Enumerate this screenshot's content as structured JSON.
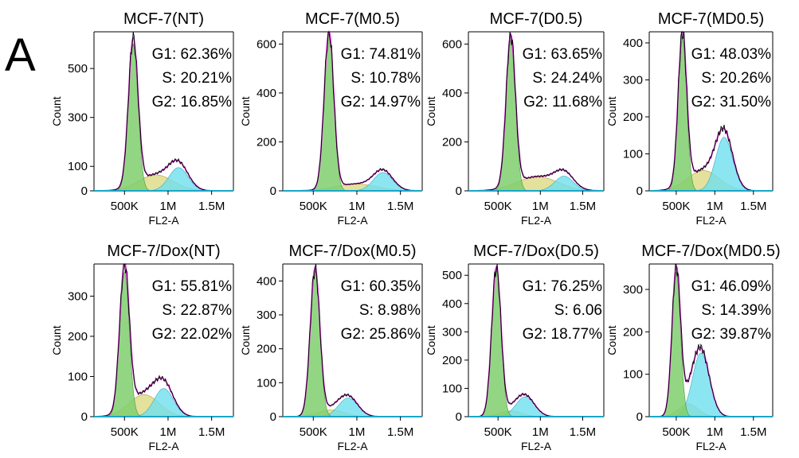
{
  "figure": {
    "panel_letter": "A"
  },
  "colors": {
    "g1_fill": "#7fcf6f",
    "s_fill": "#d9d77a",
    "g2_fill": "#6fe0ef",
    "fit_curve": "#e020e0",
    "data_curve": "#000000",
    "axis_line": "#1aa6c8"
  },
  "chart_data": [
    {
      "type": "histogram",
      "title": "MCF-7(NT)",
      "xlabel": "FL2-A",
      "ylabel": "Count",
      "xticks": [
        "500K",
        "1M",
        "1.5M"
      ],
      "yticks": [
        0,
        100,
        300,
        500
      ],
      "ymax": 650,
      "annotations": [
        "G1: 62.36%",
        "S: 20.21%",
        "G2: 16.85%"
      ],
      "g1_peak": {
        "x": 0.6,
        "height": 600
      },
      "s_phase": {
        "height": 65
      },
      "g2_peak": {
        "x": 1.12,
        "height": 95
      }
    },
    {
      "type": "histogram",
      "title": "MCF-7(M0.5)",
      "xlabel": "FL2-A",
      "ylabel": "Count",
      "xticks": [
        "500K",
        "1M",
        "1.5M"
      ],
      "yticks": [
        0,
        200,
        400,
        600
      ],
      "ymax": 650,
      "annotations": [
        "G1: 74.81%",
        "S: 10.78%",
        "G2: 14.97%"
      ],
      "g1_peak": {
        "x": 0.68,
        "height": 640
      },
      "s_phase": {
        "height": 28
      },
      "g2_peak": {
        "x": 1.3,
        "height": 75
      }
    },
    {
      "type": "histogram",
      "title": "MCF-7(D0.5)",
      "xlabel": "FL2-A",
      "ylabel": "Count",
      "xticks": [
        "500K",
        "1M",
        "1.5M"
      ],
      "yticks": [
        0,
        200,
        400,
        600
      ],
      "ymax": 650,
      "annotations": [
        "G1: 63.65%",
        "S: 24.24%",
        "G2: 11.68%"
      ],
      "g1_peak": {
        "x": 0.65,
        "height": 615
      },
      "s_phase": {
        "height": 58
      },
      "g2_peak": {
        "x": 1.28,
        "height": 60
      }
    },
    {
      "type": "histogram",
      "title": "MCF-7(MD0.5)",
      "xlabel": "FL2-A",
      "ylabel": "Count",
      "xticks": [
        "500K",
        "1M",
        "1.5M"
      ],
      "yticks": [
        0,
        100,
        200,
        300,
        400
      ],
      "ymax": 430,
      "annotations": [
        "G1: 48.03%",
        "S: 20.26%",
        "G2: 31.50%"
      ],
      "g1_peak": {
        "x": 0.58,
        "height": 410
      },
      "s_phase": {
        "height": 55
      },
      "g2_peak": {
        "x": 1.12,
        "height": 145
      }
    },
    {
      "type": "histogram",
      "title": "MCF-7/Dox(NT)",
      "xlabel": "FL2-A",
      "ylabel": "Count",
      "xticks": [
        "500K",
        "1M",
        "1.5M"
      ],
      "yticks": [
        0,
        100,
        200,
        300
      ],
      "ymax": 380,
      "annotations": [
        "G1: 55.81%",
        "S: 22.87%",
        "G2: 22.02%"
      ],
      "g1_peak": {
        "x": 0.5,
        "height": 360
      },
      "s_phase": {
        "height": 55
      },
      "g2_peak": {
        "x": 0.95,
        "height": 70
      }
    },
    {
      "type": "histogram",
      "title": "MCF-7/Dox(M0.5)",
      "xlabel": "FL2-A",
      "ylabel": "Count",
      "xticks": [
        "500K",
        "1M",
        "1.5M"
      ],
      "yticks": [
        0,
        100,
        200,
        300,
        400
      ],
      "ymax": 450,
      "annotations": [
        "G1: 60.35%",
        "S: 8.98%",
        "G2: 25.86%"
      ],
      "g1_peak": {
        "x": 0.52,
        "height": 430
      },
      "s_phase": {
        "height": 20
      },
      "g2_peak": {
        "x": 0.9,
        "height": 55
      }
    },
    {
      "type": "histogram",
      "title": "MCF-7/Dox(D0.5)",
      "xlabel": "FL2-A",
      "ylabel": "Count",
      "xticks": [
        "500K",
        "1M",
        "1.5M"
      ],
      "yticks": [
        0,
        100,
        200,
        300,
        400,
        500
      ],
      "ymax": 540,
      "annotations": [
        "G1: 76.25%",
        "S: 6.06",
        "G2: 18.77%"
      ],
      "g1_peak": {
        "x": 0.48,
        "height": 520
      },
      "s_phase": {
        "height": 20
      },
      "g2_peak": {
        "x": 0.82,
        "height": 70
      }
    },
    {
      "type": "histogram",
      "title": "MCF-7/Dox(MD0.5)",
      "xlabel": "FL2-A",
      "ylabel": "Count",
      "xticks": [
        "500K",
        "1M",
        "1.5M"
      ],
      "yticks": [
        0,
        100,
        200,
        300
      ],
      "ymax": 360,
      "annotations": [
        "G1: 46.09%",
        "S: 14.39%",
        "G2: 39.87%"
      ],
      "g1_peak": {
        "x": 0.5,
        "height": 340
      },
      "s_phase": {
        "height": 30
      },
      "g2_peak": {
        "x": 0.82,
        "height": 150
      }
    }
  ]
}
